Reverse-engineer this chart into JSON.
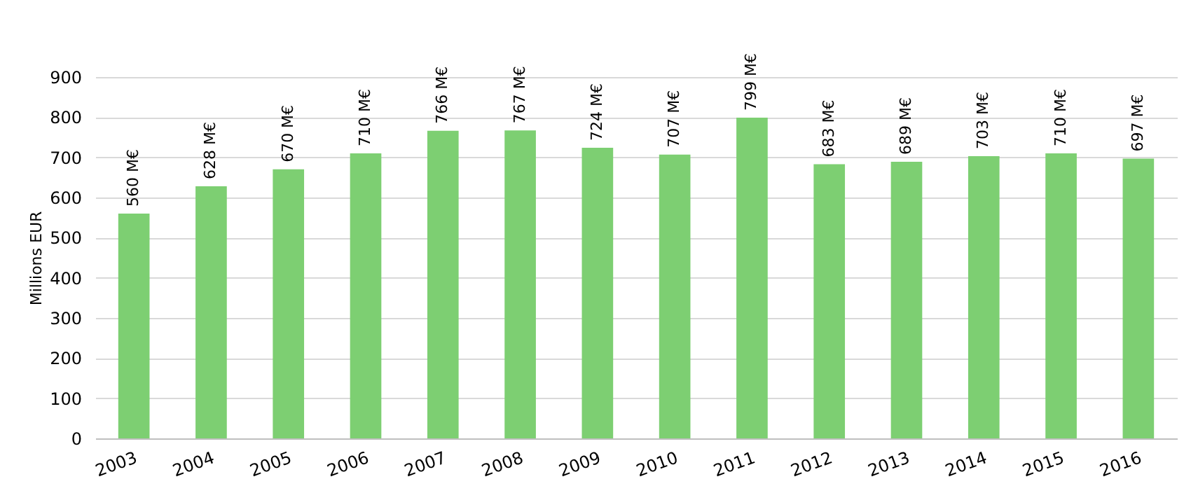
{
  "chart_data": {
    "type": "bar",
    "ylabel": "Millions EUR",
    "categories": [
      "2003",
      "2004",
      "2005",
      "2006",
      "2007",
      "2008",
      "2009",
      "2010",
      "2011",
      "2012",
      "2013",
      "2014",
      "2015",
      "2016"
    ],
    "values": [
      560,
      628,
      670,
      710,
      766,
      767,
      724,
      707,
      799,
      683,
      689,
      703,
      710,
      697
    ],
    "value_labels": [
      "560 M€",
      "628 M€",
      "670 M€",
      "710 M€",
      "766 M€",
      "767 M€",
      "724 M€",
      "707 M€",
      "799 M€",
      "683 M€",
      "689 M€",
      "703 M€",
      "710 M€",
      "697 M€"
    ],
    "color": "#7dcf72",
    "ylim": [
      0,
      900
    ],
    "yticks": [
      0,
      100,
      200,
      300,
      400,
      500,
      600,
      700,
      800,
      900
    ],
    "grid": "y"
  }
}
